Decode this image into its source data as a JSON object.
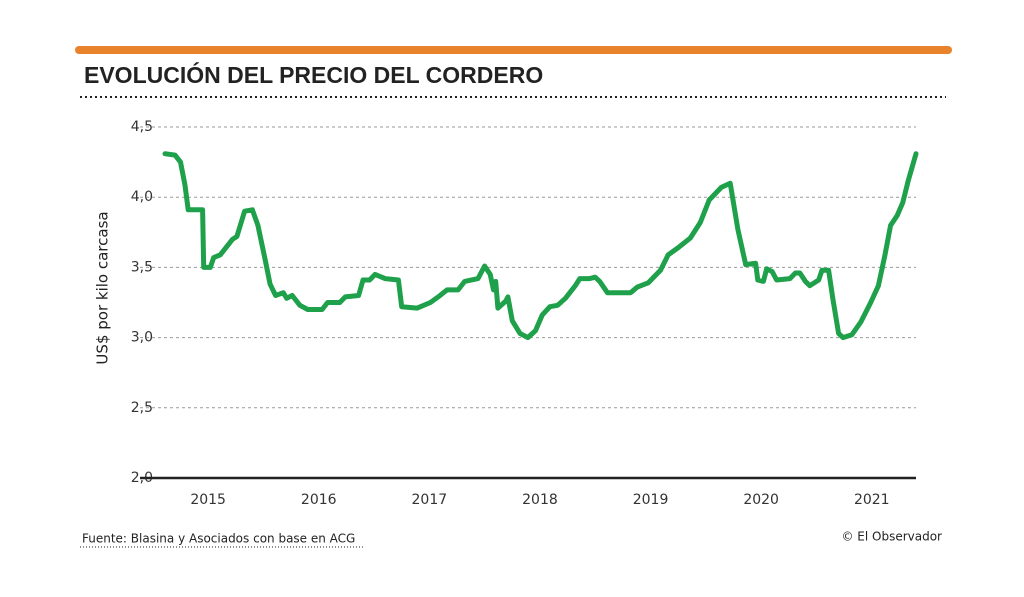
{
  "chart_data": {
    "type": "line",
    "title": "EVOLUCIÓN DEL PRECIO DEL CORDERO",
    "y_label": "US$ por kilo carcasa",
    "source": "Fuente: Blasina y Asociados con base en ACG",
    "credit": "© El Observador",
    "color": "#1fa04a",
    "grid": true,
    "xlim": [
      2014.61,
      2021.4
    ],
    "xticks": [
      2015,
      2016,
      2017,
      2018,
      2019,
      2020,
      2021
    ],
    "ylim": [
      2.0,
      4.5
    ],
    "yticks": [
      {
        "value": 2.0,
        "label": "2,0"
      },
      {
        "value": 2.5,
        "label": "2,5"
      },
      {
        "value": 3.0,
        "label": "3,0"
      },
      {
        "value": 3.5,
        "label": "3,5"
      },
      {
        "value": 4.0,
        "label": "4,0"
      },
      {
        "value": 4.5,
        "label": "4,5"
      }
    ],
    "x": [
      2014.61,
      2014.7,
      2014.75,
      2014.79,
      2014.82,
      2014.95,
      2014.96,
      2015.02,
      2015.05,
      2015.11,
      2015.22,
      2015.26,
      2015.33,
      2015.4,
      2015.45,
      2015.52,
      2015.56,
      2015.61,
      2015.68,
      2015.71,
      2015.76,
      2015.83,
      2015.9,
      2016.03,
      2016.08,
      2016.19,
      2016.24,
      2016.36,
      2016.4,
      2016.46,
      2016.51,
      2016.6,
      2016.72,
      2016.75,
      2016.89,
      2017.01,
      2017.08,
      2017.16,
      2017.26,
      2017.32,
      2017.44,
      2017.5,
      2017.55,
      2017.58,
      2017.6,
      2017.62,
      2017.69,
      2017.71,
      2017.75,
      2017.82,
      2017.89,
      2017.96,
      2018.02,
      2018.09,
      2018.16,
      2018.23,
      2018.32,
      2018.36,
      2018.45,
      2018.5,
      2018.54,
      2018.61,
      2018.82,
      2018.88,
      2018.98,
      2019.09,
      2019.16,
      2019.25,
      2019.36,
      2019.45,
      2019.53,
      2019.64,
      2019.72,
      2019.79,
      2019.86,
      2019.95,
      2019.97,
      2020.02,
      2020.05,
      2020.1,
      2020.14,
      2020.26,
      2020.31,
      2020.35,
      2020.4,
      2020.44,
      2020.52,
      2020.55,
      2020.61,
      2020.65,
      2020.7,
      2020.74,
      2020.82,
      2020.9,
      2020.99,
      2021.06,
      2021.12,
      2021.17,
      2021.23,
      2021.28,
      2021.33,
      2021.4
    ],
    "values": [
      4.31,
      4.3,
      4.25,
      4.09,
      3.91,
      3.91,
      3.5,
      3.5,
      3.57,
      3.59,
      3.7,
      3.72,
      3.9,
      3.91,
      3.8,
      3.54,
      3.38,
      3.3,
      3.32,
      3.28,
      3.3,
      3.23,
      3.2,
      3.2,
      3.25,
      3.25,
      3.29,
      3.3,
      3.41,
      3.41,
      3.45,
      3.42,
      3.41,
      3.22,
      3.21,
      3.25,
      3.29,
      3.34,
      3.34,
      3.4,
      3.42,
      3.51,
      3.45,
      3.34,
      3.4,
      3.21,
      3.26,
      3.29,
      3.12,
      3.03,
      3.0,
      3.05,
      3.16,
      3.22,
      3.23,
      3.28,
      3.37,
      3.42,
      3.42,
      3.43,
      3.4,
      3.32,
      3.32,
      3.36,
      3.39,
      3.48,
      3.59,
      3.64,
      3.71,
      3.82,
      3.98,
      4.07,
      4.1,
      3.77,
      3.52,
      3.53,
      3.41,
      3.4,
      3.49,
      3.47,
      3.41,
      3.42,
      3.46,
      3.46,
      3.4,
      3.37,
      3.41,
      3.48,
      3.48,
      3.27,
      3.03,
      3.0,
      3.02,
      3.11,
      3.25,
      3.37,
      3.59,
      3.8,
      3.87,
      3.96,
      4.12,
      4.31
    ]
  }
}
